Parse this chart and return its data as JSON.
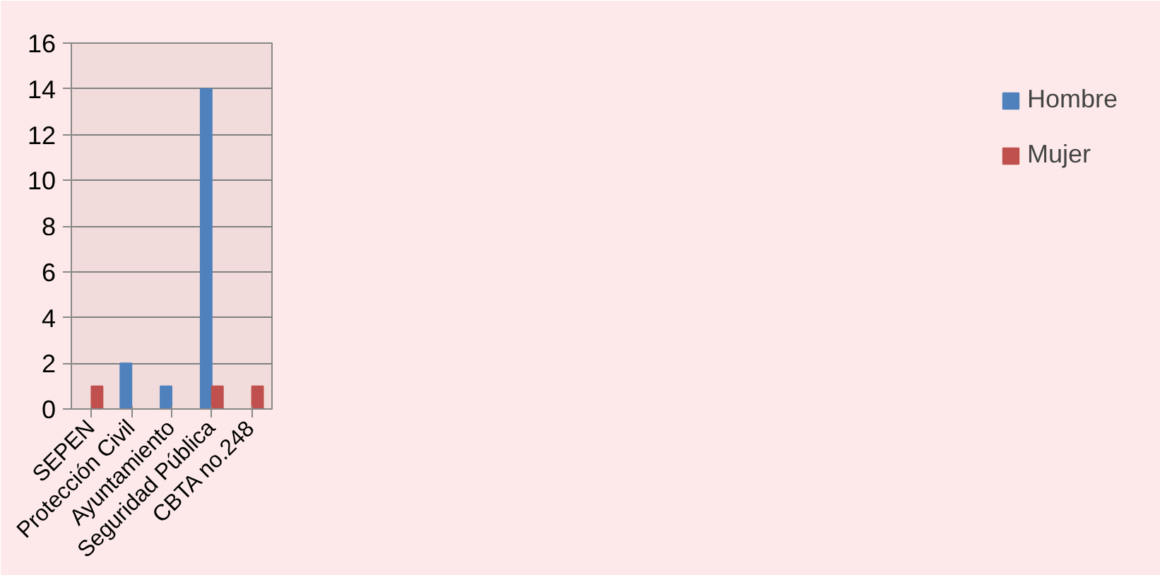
{
  "chart_data": {
    "type": "bar",
    "categories": [
      "SEPEN",
      "Protección Civil",
      "Ayuntamiento",
      "Seguridad Pública",
      "CBTA no.248"
    ],
    "series": [
      {
        "name": "Hombre",
        "color": "#4f81bd",
        "values": [
          null,
          2,
          1,
          14,
          null
        ]
      },
      {
        "name": "Mujer",
        "color": "#c0504d",
        "values": [
          1,
          null,
          null,
          1,
          1
        ]
      }
    ],
    "ylim": [
      0,
      16
    ],
    "yticks": [
      0,
      2,
      4,
      6,
      8,
      10,
      12,
      14,
      16
    ],
    "grid": "y",
    "legend": "right"
  }
}
